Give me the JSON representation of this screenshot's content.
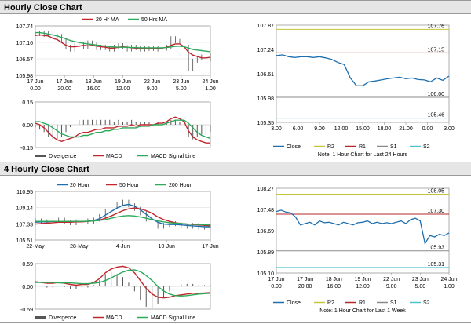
{
  "headers": {
    "hourly": "Hourly Close Chart",
    "four_hourly": "4 Hourly Close Chart"
  },
  "colors": {
    "close": "#1f6faf",
    "ma_fast": "#c0272d",
    "ma_slow": "#2aaa5a",
    "ma_200": "#2aaa5a",
    "r2": "#c3c63c",
    "r1": "#b52a2a",
    "s1": "#8a8a8a",
    "s2": "#4fc4cf",
    "macd": "#c0272d",
    "signal": "#2aaa5a",
    "divergence": "#555555"
  },
  "chart_data": [
    {
      "id": "hourly-price",
      "type": "line",
      "legend": [
        "20 Hr MA",
        "50 Hrs MA"
      ],
      "y_ticks": [
        "107.74",
        "107.16",
        "106.57",
        "105.98"
      ],
      "ylim": [
        105.98,
        107.74
      ],
      "x_ticks": [
        {
          "d": "17 Jun",
          "t": "0.00"
        },
        {
          "d": "17 Jun",
          "t": "20.00"
        },
        {
          "d": "18 Jun",
          "t": "16.00"
        },
        {
          "d": "19 Jun",
          "t": "12.00"
        },
        {
          "d": "22 Jun",
          "t": "9.00"
        },
        {
          "d": "23 Jun",
          "t": "5.00"
        },
        {
          "d": "24 Jun",
          "t": "1.00"
        }
      ],
      "price": [
        107.45,
        107.5,
        107.42,
        107.48,
        107.35,
        107.38,
        107.2,
        107.0,
        106.9,
        107.05,
        107.1,
        107.0,
        107.15,
        107.1,
        106.95,
        107.0,
        106.95,
        106.9,
        107.0,
        107.05,
        106.98,
        106.9,
        107.0,
        106.95,
        106.9,
        106.95,
        106.92,
        106.95,
        106.9,
        106.93,
        107.0,
        107.3,
        107.2,
        107.15,
        107.0,
        106.2,
        106.5,
        106.6,
        106.65,
        106.55,
        106.7
      ],
      "ma_fast": [
        107.4,
        107.42,
        107.4,
        107.38,
        107.3,
        107.25,
        107.15,
        107.05,
        107.0,
        107.0,
        107.02,
        107.05,
        107.03,
        107.05,
        107.02,
        107.0,
        106.98,
        106.95,
        106.95,
        106.98,
        107.0,
        106.98,
        106.96,
        106.95,
        106.94,
        106.94,
        106.95,
        106.95,
        106.93,
        106.95,
        106.98,
        107.05,
        107.1,
        107.1,
        107.0,
        106.8,
        106.7,
        106.65,
        106.6,
        106.6,
        106.62
      ],
      "ma_slow": [
        107.5,
        107.5,
        107.48,
        107.45,
        107.42,
        107.38,
        107.33,
        107.28,
        107.22,
        107.18,
        107.15,
        107.12,
        107.1,
        107.08,
        107.06,
        107.04,
        107.02,
        107.0,
        106.99,
        106.98,
        106.98,
        106.98,
        106.97,
        106.97,
        106.96,
        106.96,
        106.96,
        106.96,
        106.96,
        106.96,
        106.97,
        106.99,
        107.01,
        107.02,
        107.0,
        106.95,
        106.9,
        106.88,
        106.86,
        106.84,
        106.82
      ]
    },
    {
      "id": "hourly-macd",
      "type": "line",
      "legend": [
        "Divergence",
        "MACD",
        "MACD Signal Line"
      ],
      "y_ticks": [
        "0.15",
        "0.00",
        "-0.15"
      ],
      "ylim": [
        -0.15,
        0.15
      ],
      "macd": [
        0.01,
        0.0,
        -0.02,
        -0.05,
        -0.08,
        -0.1,
        -0.11,
        -0.1,
        -0.09,
        -0.08,
        -0.06,
        -0.05,
        -0.05,
        -0.04,
        -0.03,
        -0.03,
        -0.02,
        -0.02,
        -0.02,
        -0.01,
        -0.01,
        -0.01,
        -0.0,
        -0.01,
        -0.0,
        0.0,
        0.0,
        0.0,
        0.01,
        0.01,
        0.02,
        0.04,
        0.05,
        0.04,
        0.02,
        -0.04,
        -0.08,
        -0.1,
        -0.11,
        -0.12,
        -0.12
      ],
      "signal": [
        0.02,
        0.02,
        0.01,
        0.0,
        -0.02,
        -0.04,
        -0.06,
        -0.07,
        -0.08,
        -0.08,
        -0.08,
        -0.07,
        -0.07,
        -0.06,
        -0.05,
        -0.05,
        -0.04,
        -0.04,
        -0.03,
        -0.03,
        -0.02,
        -0.02,
        -0.02,
        -0.02,
        -0.01,
        -0.01,
        -0.01,
        -0.0,
        0.0,
        0.0,
        0.01,
        0.02,
        0.03,
        0.03,
        0.03,
        0.01,
        -0.02,
        -0.05,
        -0.07,
        -0.08,
        -0.09
      ]
    },
    {
      "id": "hourly-pivot",
      "type": "line",
      "note": "Note: 1 Hour Chart for Last 24 Hours",
      "legend": [
        "Close",
        "R2",
        "R1",
        "S1",
        "S2"
      ],
      "y_ticks": [
        "107.87",
        "107.24",
        "106.61",
        "105.98",
        "105.35"
      ],
      "ylim": [
        105.35,
        107.87
      ],
      "x_ticks": [
        "3.00",
        "6.00",
        "9.00",
        "12.00",
        "15.00",
        "18.00",
        "21.00",
        "0.00",
        "3.00"
      ],
      "levels": {
        "R2": "107.76",
        "R1": "107.15",
        "S1": "106.00",
        "S2": "105.46"
      },
      "close": [
        107.08,
        107.1,
        107.05,
        107.03,
        107.05,
        107.05,
        107.03,
        107.05,
        107.02,
        106.98,
        106.9,
        106.85,
        106.5,
        106.3,
        106.3,
        106.4,
        106.42,
        106.45,
        106.48,
        106.5,
        106.52,
        106.48,
        106.5,
        106.46,
        106.45,
        106.4,
        106.5,
        106.44,
        106.55
      ]
    },
    {
      "id": "four-hourly-price",
      "type": "line",
      "legend": [
        "20 Hour",
        "50 Hour",
        "200 Hour"
      ],
      "y_ticks": [
        "110.95",
        "109.14",
        "107.33",
        "105.51"
      ],
      "ylim": [
        105.51,
        110.95
      ],
      "x_ticks": [
        "22-May",
        "28-May",
        "4-Jun",
        "10-Jun",
        "17-Jun"
      ],
      "price": [
        107.7,
        107.6,
        107.5,
        107.7,
        107.8,
        107.5,
        107.4,
        107.6,
        107.7,
        107.5,
        107.8,
        108.2,
        108.8,
        109.2,
        109.5,
        109.8,
        109.4,
        109.0,
        108.5,
        107.8,
        107.3,
        107.0,
        107.2,
        107.4,
        107.3,
        107.1,
        107.0,
        107.2,
        106.9,
        107.0,
        107.1
      ],
      "ma_20": [
        107.5,
        107.55,
        107.55,
        107.6,
        107.6,
        107.6,
        107.55,
        107.55,
        107.6,
        107.6,
        107.7,
        107.9,
        108.3,
        108.7,
        109.1,
        109.4,
        109.5,
        109.3,
        108.9,
        108.4,
        107.9,
        107.5,
        107.3,
        107.25,
        107.25,
        107.2,
        107.15,
        107.1,
        107.05,
        107.0,
        107.0
      ],
      "ma_50": [
        107.3,
        107.35,
        107.4,
        107.45,
        107.5,
        107.5,
        107.5,
        107.55,
        107.55,
        107.6,
        107.65,
        107.75,
        107.95,
        108.2,
        108.5,
        108.8,
        109.0,
        109.1,
        109.0,
        108.8,
        108.5,
        108.1,
        107.8,
        107.6,
        107.45,
        107.35,
        107.3,
        107.25,
        107.2,
        107.15,
        107.1
      ],
      "ma_200": [
        107.6,
        107.6,
        107.6,
        107.6,
        107.6,
        107.6,
        107.6,
        107.6,
        107.6,
        107.62,
        107.65,
        107.7,
        107.8,
        107.95,
        108.1,
        108.2,
        108.25,
        108.2,
        108.1,
        107.95,
        107.8,
        107.65,
        107.55,
        107.45,
        107.4,
        107.35,
        107.3,
        107.28,
        107.25,
        107.22,
        107.2
      ]
    },
    {
      "id": "four-hourly-macd",
      "type": "line",
      "legend": [
        "Divergence",
        "MACD",
        "MACD Signal Line"
      ],
      "y_ticks": [
        "0.59",
        "0.00",
        "-0.59"
      ],
      "ylim": [
        -0.59,
        0.59
      ],
      "macd": [
        0.12,
        0.1,
        0.08,
        0.08,
        0.1,
        0.08,
        0.05,
        0.03,
        0.05,
        0.05,
        0.1,
        0.2,
        0.35,
        0.45,
        0.5,
        0.52,
        0.48,
        0.35,
        0.15,
        -0.05,
        -0.2,
        -0.28,
        -0.3,
        -0.28,
        -0.24,
        -0.22,
        -0.2,
        -0.18,
        -0.18,
        -0.17,
        -0.16
      ],
      "signal": [
        0.1,
        0.1,
        0.1,
        0.1,
        0.09,
        0.09,
        0.09,
        0.08,
        0.07,
        0.07,
        0.08,
        0.1,
        0.15,
        0.22,
        0.3,
        0.37,
        0.42,
        0.43,
        0.38,
        0.28,
        0.15,
        0.0,
        -0.12,
        -0.2,
        -0.24,
        -0.25,
        -0.24,
        -0.22,
        -0.2,
        -0.19,
        -0.18
      ]
    },
    {
      "id": "four-hourly-pivot",
      "type": "line",
      "note": "Note: 1 Hour Chart for Last 1 Week",
      "legend": [
        "Close",
        "R2",
        "R1",
        "S1",
        "S2"
      ],
      "y_ticks": [
        "108.27",
        "107.48",
        "106.69",
        "105.89",
        "105.10"
      ],
      "ylim": [
        105.1,
        108.27
      ],
      "x_ticks": [
        {
          "d": "17 Jun",
          "t": "0.00"
        },
        {
          "d": "17 Jun",
          "t": "20.00"
        },
        {
          "d": "18 Jun",
          "t": "16.00"
        },
        {
          "d": "19 Jun",
          "t": "12.00"
        },
        {
          "d": "22 Jun",
          "t": "9.00"
        },
        {
          "d": "23 Jun",
          "t": "5.00"
        },
        {
          "d": "24 Jun",
          "t": "1.00"
        }
      ],
      "levels": {
        "R2": "108.05",
        "R1": "107.30",
        "S1": "105.93",
        "S2": "105.31"
      },
      "close": [
        107.4,
        107.45,
        107.38,
        107.35,
        107.2,
        106.9,
        106.95,
        107.0,
        106.9,
        107.05,
        106.98,
        107.0,
        106.95,
        106.9,
        107.0,
        106.95,
        106.9,
        106.98,
        107.0,
        107.05,
        106.95,
        107.0,
        106.95,
        106.98,
        106.95,
        107.0,
        107.05,
        106.95,
        107.1,
        107.15,
        107.05,
        106.2,
        106.5,
        106.45,
        106.55,
        106.5,
        106.6
      ]
    }
  ]
}
